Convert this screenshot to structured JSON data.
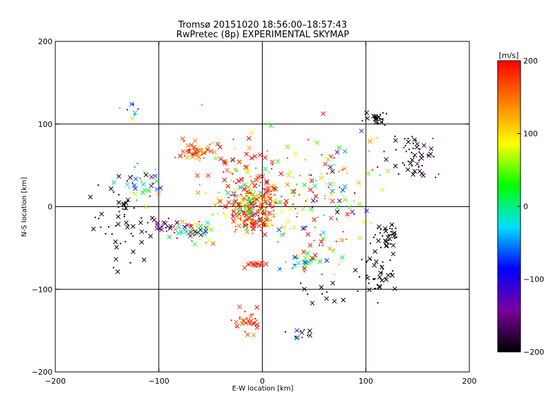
{
  "title_line1": "Tromsø 20151020 18:56:00–18:57:43",
  "title_line2": "RwPretec (8p) EXPERIMENTAL SKYMAP",
  "chart_data": {
    "type": "scatter",
    "xlabel": "E-W location [km]",
    "ylabel": "N-S location [km]",
    "xlim": [
      -200,
      200
    ],
    "ylim": [
      -200,
      200
    ],
    "xticks": [
      -200,
      -100,
      0,
      100,
      200
    ],
    "yticks": [
      -200,
      -100,
      0,
      100,
      200
    ],
    "grid": "lines at multiples of 100 km",
    "colorbar": {
      "label": "[m/s]",
      "range": [
        -200,
        200
      ],
      "ticks": [
        200,
        100,
        0,
        -100,
        -200
      ],
      "colors": [
        "#000000",
        "#7a00a0",
        "#0000ff",
        "#00e0ff",
        "#00ff00",
        "#ffff00",
        "#ff8000",
        "#ff0000"
      ]
    },
    "marker_types": [
      "x",
      "dot"
    ],
    "clusters": [
      {
        "x": -10,
        "y": 2,
        "spread": [
          15,
          13
        ],
        "n": 260,
        "velocity": 120,
        "vspread": 110
      },
      {
        "x": -10,
        "y": -18,
        "spread": [
          10,
          6
        ],
        "n": 60,
        "velocity": 185,
        "vspread": 25
      },
      {
        "x": -65,
        "y": 67,
        "spread": [
          9,
          6
        ],
        "n": 55,
        "velocity": 175,
        "vspread": 40
      },
      {
        "x": -65,
        "y": -28,
        "spread": [
          13,
          6
        ],
        "n": 55,
        "velocity": 20,
        "vspread": 110
      },
      {
        "x": -135,
        "y": -20,
        "spread": [
          14,
          24
        ],
        "n": 55,
        "velocity": -200,
        "vspread": 10
      },
      {
        "x": -115,
        "y": 25,
        "spread": [
          12,
          12
        ],
        "n": 35,
        "velocity": -50,
        "vspread": 80
      },
      {
        "x": -95,
        "y": -25,
        "spread": [
          6,
          5
        ],
        "n": 20,
        "velocity": -160,
        "vspread": 20
      },
      {
        "x": 110,
        "y": 105,
        "spread": [
          4,
          4
        ],
        "n": 25,
        "velocity": -200,
        "vspread": 0
      },
      {
        "x": 148,
        "y": 60,
        "spread": [
          14,
          15
        ],
        "n": 55,
        "velocity": -200,
        "vspread": 30
      },
      {
        "x": 122,
        "y": -35,
        "spread": [
          6,
          9
        ],
        "n": 40,
        "velocity": -200,
        "vspread": 0
      },
      {
        "x": 110,
        "y": -80,
        "spread": [
          9,
          14
        ],
        "n": 40,
        "velocity": -200,
        "vspread": 0
      },
      {
        "x": -15,
        "y": -138,
        "spread": [
          6,
          7
        ],
        "n": 35,
        "velocity": 180,
        "vspread": 30
      },
      {
        "x": -5,
        "y": -70,
        "spread": [
          6,
          3
        ],
        "n": 20,
        "velocity": 190,
        "vspread": 10
      },
      {
        "x": 35,
        "y": -68,
        "spread": [
          8,
          5
        ],
        "n": 20,
        "velocity": -30,
        "vspread": 60
      },
      {
        "x": 38,
        "y": -155,
        "spread": [
          5,
          3
        ],
        "n": 12,
        "velocity": -150,
        "vspread": 60
      },
      {
        "x": 40,
        "y": 35,
        "spread": [
          35,
          25
        ],
        "n": 60,
        "velocity": 120,
        "vspread": 120
      },
      {
        "x": -25,
        "y": 45,
        "spread": [
          25,
          25
        ],
        "n": 70,
        "velocity": 150,
        "vspread": 100
      },
      {
        "x": 50,
        "y": -40,
        "spread": [
          25,
          25
        ],
        "n": 55,
        "velocity": 100,
        "vspread": 130
      },
      {
        "x": 75,
        "y": 10,
        "spread": [
          20,
          15
        ],
        "n": 30,
        "velocity": -20,
        "vspread": 120
      },
      {
        "x": -125,
        "y": 118,
        "spread": [
          5,
          6
        ],
        "n": 8,
        "velocity": -50,
        "vspread": 60
      },
      {
        "x": 60,
        "y": -100,
        "spread": [
          15,
          10
        ],
        "n": 12,
        "velocity": -200,
        "vspread": 0
      },
      {
        "x": 90,
        "y": 60,
        "spread": [
          20,
          40
        ],
        "n": 18,
        "velocity": 80,
        "vspread": 150
      }
    ]
  }
}
